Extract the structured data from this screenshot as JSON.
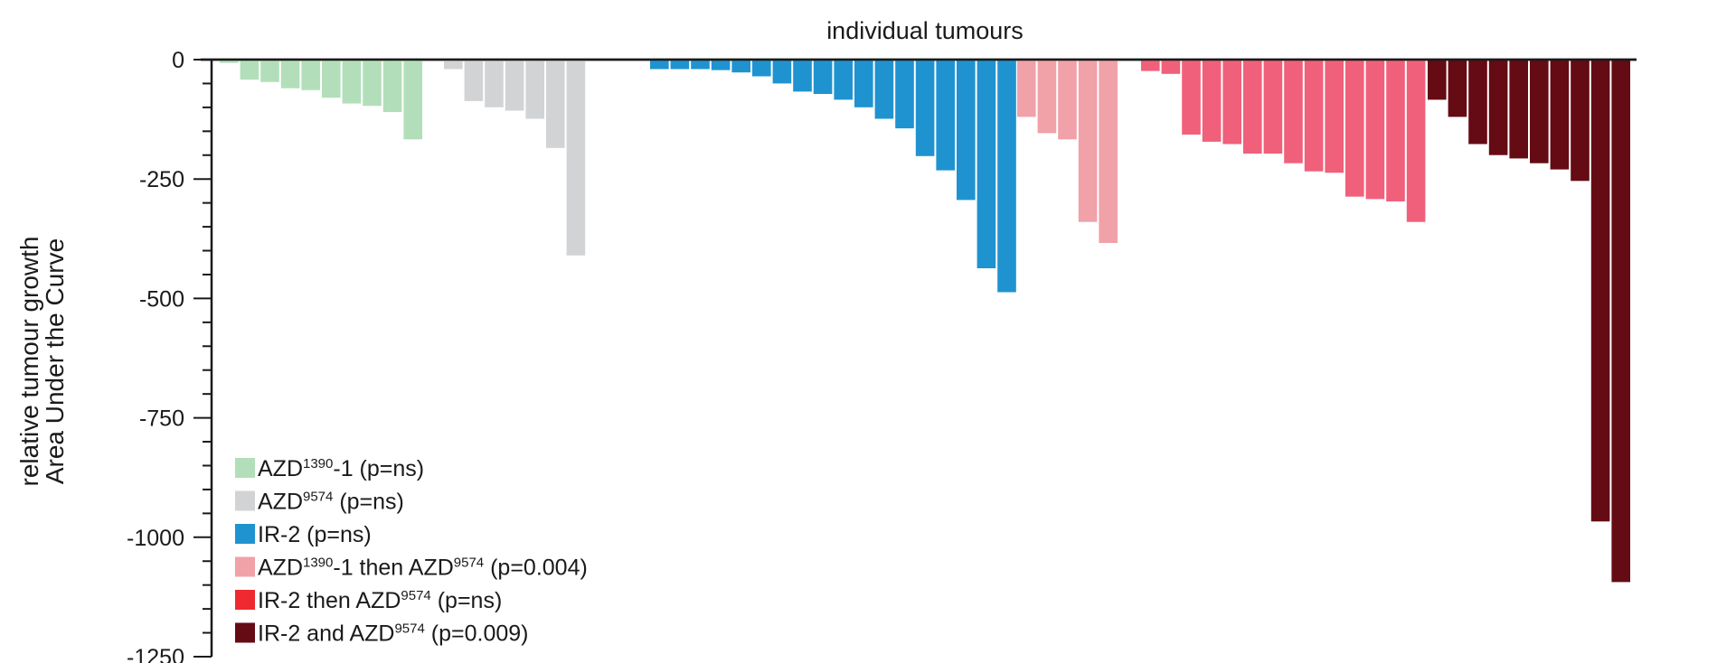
{
  "chart_data": {
    "type": "bar",
    "title": "individual tumours",
    "ylabel_lines": [
      "relative tumour growth",
      "Area Under the Curve"
    ],
    "ylim": [
      -1250,
      0
    ],
    "yticks": [
      0,
      -250,
      -500,
      -750,
      -1000,
      -1250
    ],
    "ytick_labels": [
      "0",
      "-250",
      "-500",
      "-750",
      "-1000",
      "-1250"
    ],
    "series": [
      {
        "name": "AZD1390-1",
        "legend_parts": [
          {
            "t": "AZD",
            "sup": false
          },
          {
            "t": "1390",
            "sup": true
          },
          {
            "t": "-1 (p=ns)",
            "sup": false
          }
        ],
        "color": "#b2dfb9",
        "values": [
          -5,
          -40,
          -45,
          -58,
          -62,
          -78,
          -90,
          -95,
          -108,
          -165
        ]
      },
      {
        "name": "AZD9574",
        "legend_parts": [
          {
            "t": "AZD",
            "sup": false
          },
          {
            "t": "9574",
            "sup": true
          },
          {
            "t": " (p=ns)",
            "sup": false
          }
        ],
        "color": "#d2d3d4",
        "values": [
          -18,
          -85,
          -98,
          -105,
          -122,
          -183,
          -408
        ]
      },
      {
        "name": "IR-2",
        "legend_parts": [
          {
            "t": "IR-2 (p=ns)",
            "sup": false
          }
        ],
        "color": "#1f93d0",
        "values": [
          -18,
          -18,
          -18,
          -20,
          -25,
          -33,
          -48,
          -65,
          -70,
          -82,
          -98,
          -122,
          -142,
          -200,
          -230,
          -292,
          -435,
          -485
        ]
      },
      {
        "name": "AZD1390-1 then AZD9574",
        "legend_parts": [
          {
            "t": "AZD",
            "sup": false
          },
          {
            "t": "1390",
            "sup": true
          },
          {
            "t": "-1 then AZD",
            "sup": false
          },
          {
            "t": "9574",
            "sup": true
          },
          {
            "t": " (p=0.004)",
            "sup": false
          }
        ],
        "color": "#f1a1a8",
        "values": [
          -118,
          -152,
          -165,
          -338,
          -382
        ]
      },
      {
        "name": "IR-2 then AZD9574",
        "legend_parts": [
          {
            "t": "IR-2 then AZD",
            "sup": false
          },
          {
            "t": "9574",
            "sup": true
          },
          {
            "t": " (p=ns)",
            "sup": false
          }
        ],
        "color": "#ee2a30",
        "bar_color": "#f0607a",
        "values": [
          -22,
          -28,
          -155,
          -170,
          -175,
          -195,
          -195,
          -215,
          -232,
          -235,
          -285,
          -290,
          -295,
          -338
        ]
      },
      {
        "name": "IR-2 and AZD9574",
        "legend_parts": [
          {
            "t": "IR-2 and AZD",
            "sup": false
          },
          {
            "t": "9574",
            "sup": true
          },
          {
            "t": " (p=0.009)",
            "sup": false
          }
        ],
        "color": "#650b14",
        "values": [
          -82,
          -118,
          -175,
          -198,
          -205,
          -215,
          -228,
          -252,
          -965,
          -1092
        ]
      }
    ],
    "legend_position": "bottom-left",
    "grid": false
  }
}
